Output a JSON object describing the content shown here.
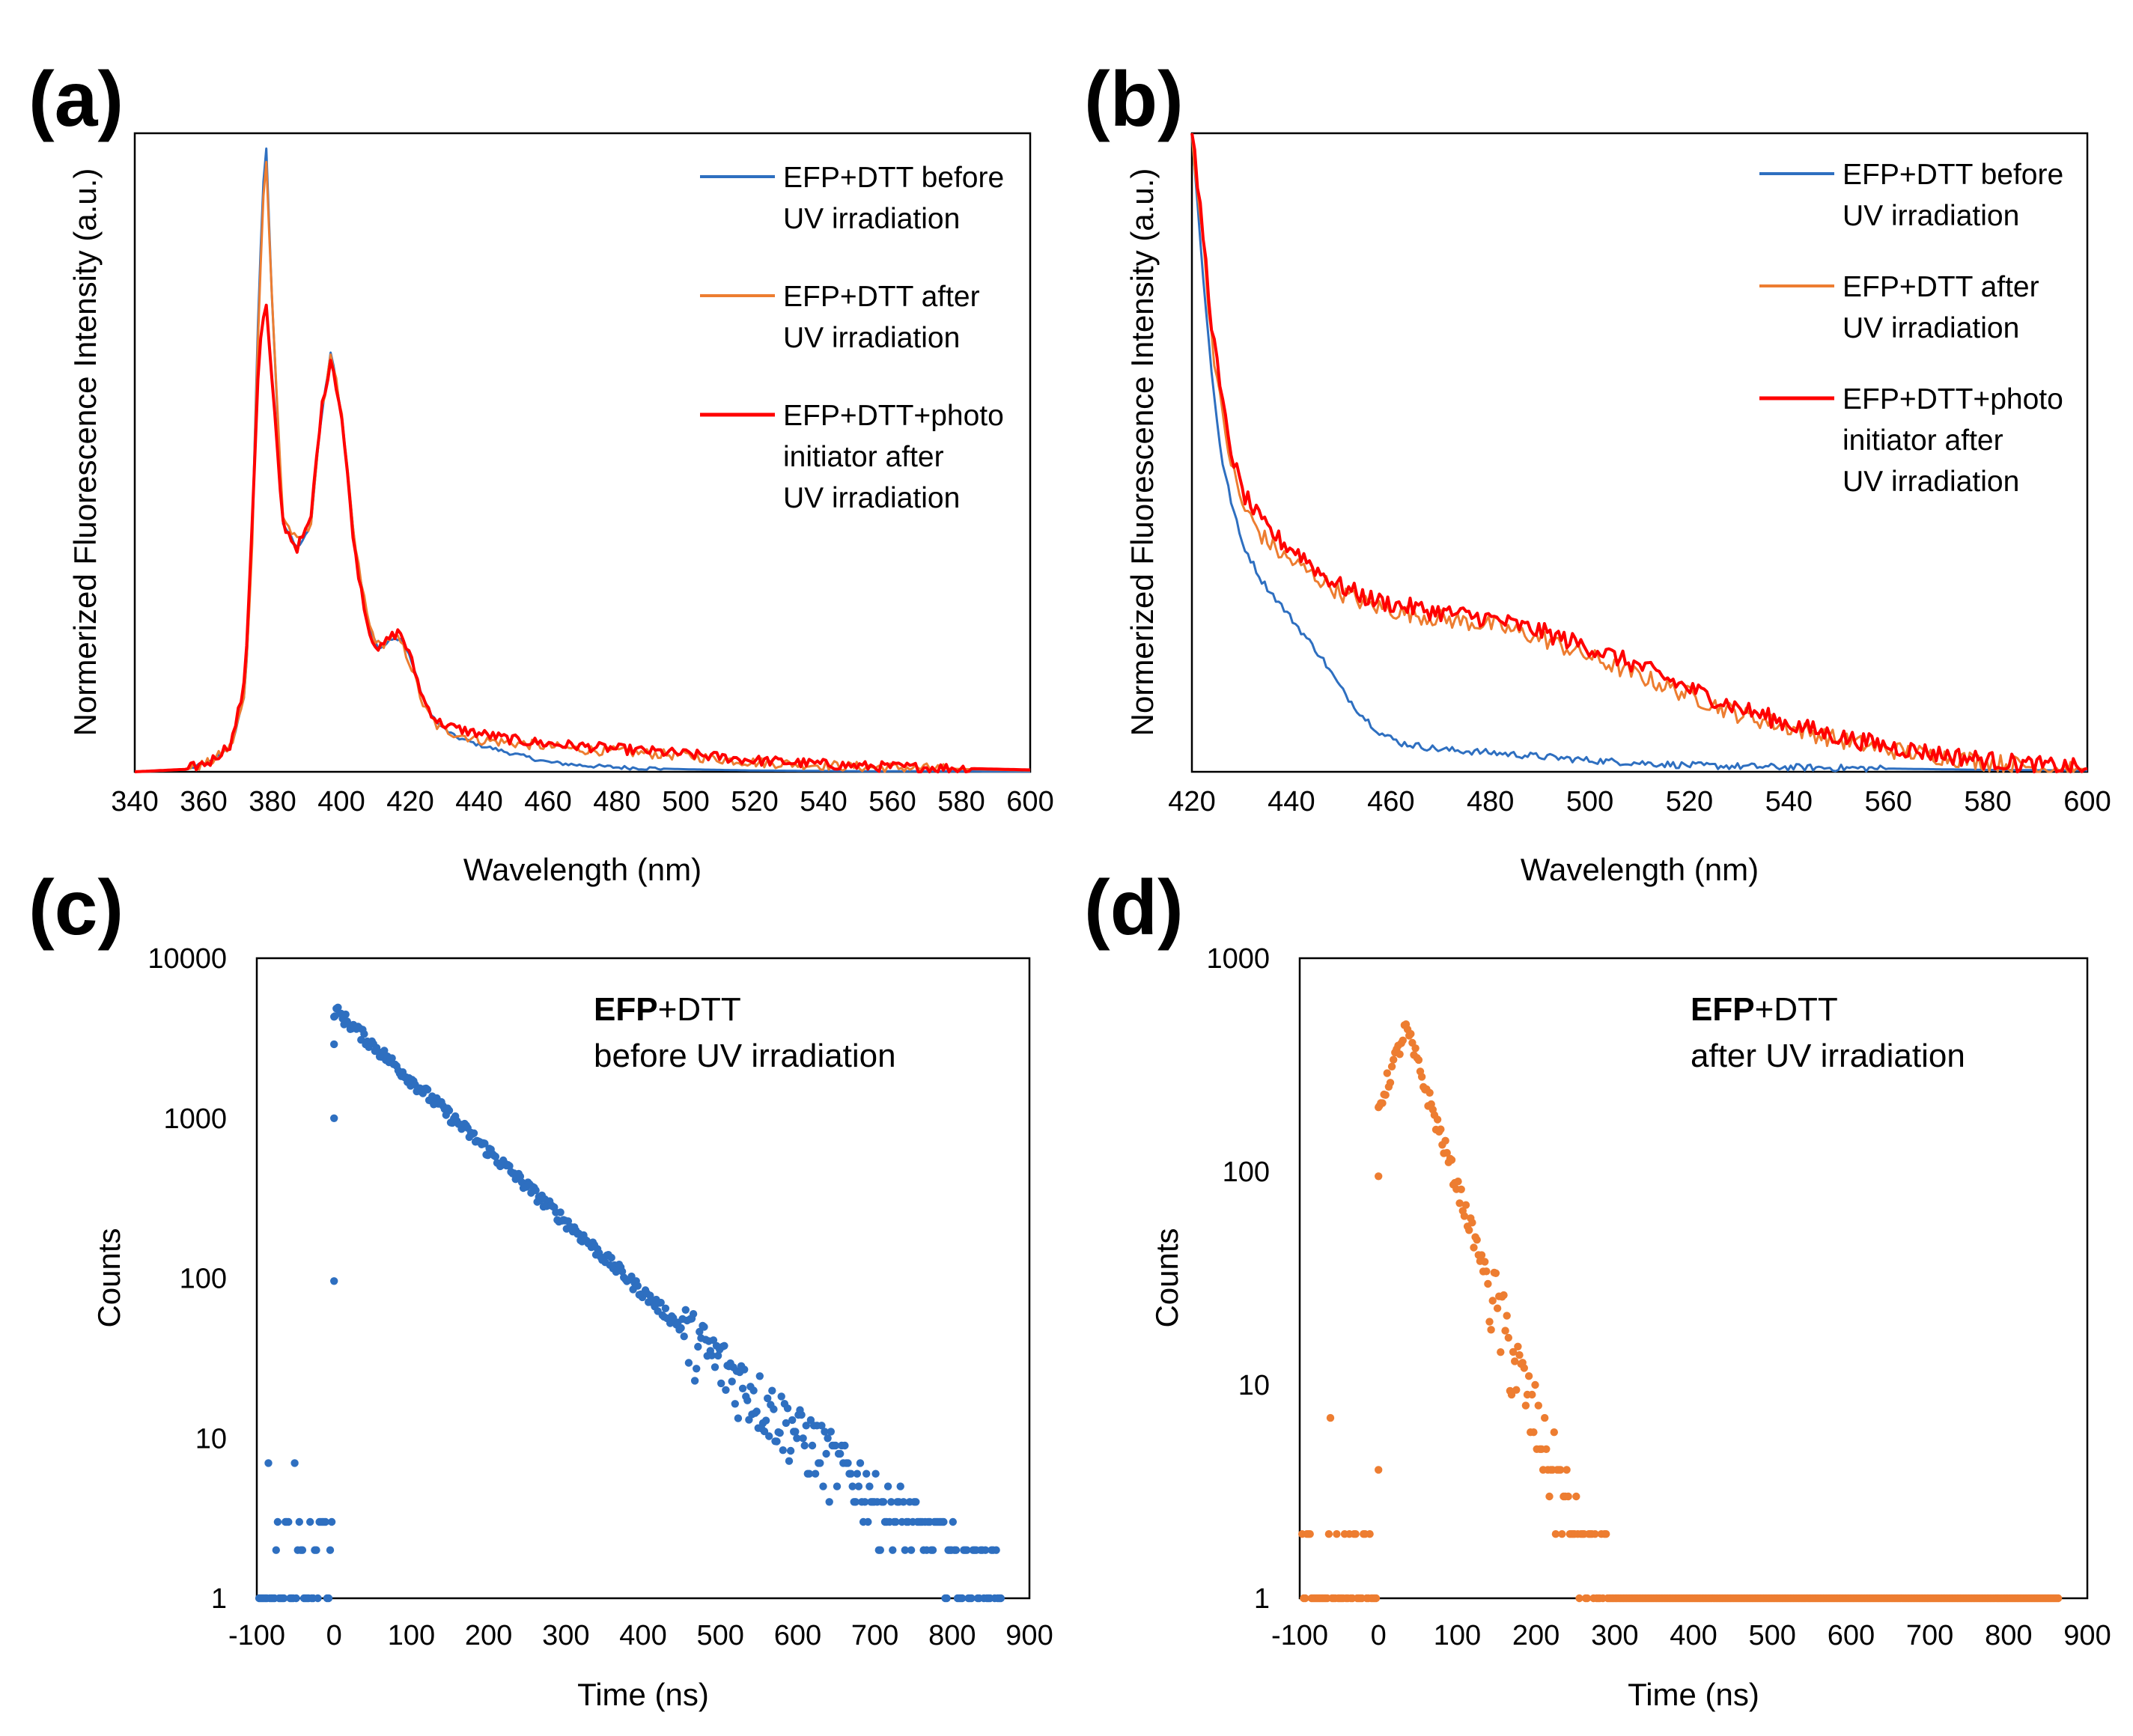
{
  "colors": {
    "blue": "#2E6FC0",
    "orange": "#ED7D31",
    "red": "#FF0000"
  },
  "chart_data": [
    {
      "id": "a",
      "panel_label": "(a)",
      "type": "line",
      "xlabel": "Wavelength (nm)",
      "ylabel": "Normerized Fluorescence Intensity (a.u.)",
      "xlim": [
        340,
        600
      ],
      "ylim": [
        0,
        1.0
      ],
      "xticks": [
        340,
        360,
        380,
        400,
        420,
        440,
        460,
        480,
        500,
        520,
        540,
        560,
        580,
        600
      ],
      "legend_position": "top-right",
      "series": [
        {
          "name": "EFP+DTT before UV irradiation",
          "legend_lines": [
            "EFP+DTT before",
            "UV irradiation"
          ],
          "color": "#2E6FC0",
          "x": [
            340,
            355,
            362,
            368,
            372,
            374,
            376,
            378,
            380,
            383,
            387,
            391,
            394,
            397,
            400,
            404,
            408,
            411,
            414,
            417,
            420,
            424,
            428,
            433,
            440,
            450,
            460,
            470,
            480,
            500,
            520,
            550,
            600
          ],
          "y": [
            0,
            0.004,
            0.015,
            0.04,
            0.12,
            0.35,
            0.75,
            1.0,
            0.72,
            0.39,
            0.35,
            0.38,
            0.55,
            0.66,
            0.56,
            0.35,
            0.23,
            0.19,
            0.205,
            0.21,
            0.18,
            0.11,
            0.075,
            0.055,
            0.042,
            0.028,
            0.015,
            0.01,
            0.007,
            0.004,
            0.002,
            0.001,
            0.0005
          ]
        },
        {
          "name": "EFP+DTT after UV irradiation",
          "legend_lines": [
            "EFP+DTT after",
            "UV irradiation"
          ],
          "color": "#ED7D31",
          "x": [
            340,
            355,
            362,
            368,
            372,
            374,
            376,
            378,
            380,
            383,
            387,
            391,
            394,
            397,
            400,
            404,
            408,
            411,
            414,
            417,
            420,
            424,
            428,
            433,
            440,
            450,
            460,
            470,
            480,
            500,
            520,
            550,
            600
          ],
          "y": [
            0,
            0.004,
            0.015,
            0.04,
            0.12,
            0.34,
            0.73,
            0.98,
            0.72,
            0.4,
            0.36,
            0.385,
            0.55,
            0.66,
            0.56,
            0.35,
            0.23,
            0.195,
            0.21,
            0.205,
            0.17,
            0.1,
            0.07,
            0.06,
            0.05,
            0.045,
            0.04,
            0.035,
            0.032,
            0.025,
            0.015,
            0.008,
            0.002
          ]
        },
        {
          "name": "EFP+DTT+photo initiator after UV irradiation",
          "legend_lines": [
            "EFP+DTT+photo",
            "initiator after",
            "UV irradiation"
          ],
          "color": "#FF0000",
          "x": [
            340,
            355,
            362,
            368,
            372,
            374,
            376,
            378,
            380,
            383,
            387,
            391,
            394,
            397,
            400,
            404,
            408,
            411,
            414,
            417,
            420,
            424,
            428,
            433,
            440,
            450,
            460,
            470,
            480,
            500,
            520,
            550,
            600
          ],
          "y": [
            0,
            0.004,
            0.016,
            0.045,
            0.14,
            0.38,
            0.65,
            0.74,
            0.6,
            0.39,
            0.35,
            0.39,
            0.56,
            0.65,
            0.56,
            0.34,
            0.22,
            0.19,
            0.21,
            0.22,
            0.18,
            0.11,
            0.078,
            0.068,
            0.06,
            0.05,
            0.044,
            0.04,
            0.036,
            0.028,
            0.018,
            0.009,
            0.003
          ]
        }
      ]
    },
    {
      "id": "b",
      "panel_label": "(b)",
      "type": "line",
      "xlabel": "Wavelength (nm)",
      "ylabel": "Normerized Fluorescence Intensity (a.u.)",
      "xlim": [
        420,
        600
      ],
      "ylim": [
        0,
        1.0
      ],
      "xticks": [
        420,
        440,
        460,
        480,
        500,
        520,
        540,
        560,
        580,
        600
      ],
      "legend_position": "top-right",
      "series": [
        {
          "name": "EFP+DTT before UV irradiation",
          "legend_lines": [
            "EFP+DTT before",
            "UV irradiation"
          ],
          "color": "#2E6FC0",
          "x": [
            420,
            422,
            424,
            426,
            428,
            430,
            434,
            438,
            442,
            446,
            450,
            454,
            458,
            462,
            470,
            480,
            490,
            500,
            510,
            520,
            540,
            560,
            580,
            600
          ],
          "y": [
            1.0,
            0.8,
            0.62,
            0.49,
            0.42,
            0.36,
            0.3,
            0.26,
            0.22,
            0.18,
            0.13,
            0.09,
            0.06,
            0.045,
            0.035,
            0.03,
            0.024,
            0.018,
            0.014,
            0.01,
            0.007,
            0.005,
            0.003,
            0.002
          ]
        },
        {
          "name": "EFP+DTT after UV irradiation",
          "legend_lines": [
            "EFP+DTT after",
            "UV irradiation"
          ],
          "color": "#ED7D31",
          "x": [
            420,
            422,
            424,
            426,
            428,
            430,
            434,
            438,
            442,
            446,
            450,
            456,
            462,
            470,
            480,
            490,
            500,
            510,
            520,
            530,
            540,
            550,
            560,
            570,
            580,
            590,
            600
          ],
          "y": [
            1.0,
            0.85,
            0.68,
            0.56,
            0.48,
            0.42,
            0.37,
            0.34,
            0.32,
            0.3,
            0.28,
            0.26,
            0.25,
            0.24,
            0.23,
            0.21,
            0.18,
            0.15,
            0.12,
            0.09,
            0.07,
            0.05,
            0.035,
            0.025,
            0.015,
            0.008,
            0.004
          ]
        },
        {
          "name": "EFP+DTT+photo initiator after UV irradiation",
          "legend_lines": [
            "EFP+DTT+photo",
            "initiator after",
            "UV irradiation"
          ],
          "color": "#FF0000",
          "x": [
            420,
            422,
            424,
            426,
            428,
            430,
            434,
            438,
            442,
            446,
            450,
            456,
            462,
            470,
            480,
            490,
            500,
            510,
            520,
            530,
            540,
            550,
            560,
            570,
            580,
            590,
            600
          ],
          "y": [
            1.0,
            0.86,
            0.7,
            0.58,
            0.5,
            0.44,
            0.39,
            0.36,
            0.34,
            0.31,
            0.29,
            0.27,
            0.26,
            0.25,
            0.24,
            0.22,
            0.195,
            0.165,
            0.13,
            0.1,
            0.075,
            0.055,
            0.04,
            0.028,
            0.018,
            0.01,
            0.005
          ]
        }
      ]
    },
    {
      "id": "c",
      "panel_label": "(c)",
      "type": "scatter",
      "xlabel": "Time (ns)",
      "ylabel": "Counts",
      "yscale": "log",
      "xlim": [
        -100,
        900
      ],
      "ylim": [
        1,
        10000
      ],
      "xticks": [
        -100,
        0,
        100,
        200,
        300,
        400,
        500,
        600,
        700,
        800,
        900
      ],
      "yticks": [
        1,
        10,
        100,
        1000,
        10000
      ],
      "annotation_bold": "EFP",
      "annotation_rest": "+DTT",
      "annotation_line2": "before UV irradiation",
      "color": "#2E6FC0",
      "decay": {
        "peak_time_ns": 0,
        "peak_counts": 4800,
        "lifetime_ns": 98,
        "end_time_ns": 864,
        "background_counts": [
          1,
          2,
          3
        ]
      }
    },
    {
      "id": "d",
      "panel_label": "(d)",
      "type": "scatter",
      "xlabel": "Time (ns)",
      "ylabel": "Counts",
      "yscale": "log",
      "xlim": [
        -100,
        900
      ],
      "ylim": [
        1,
        1000
      ],
      "xticks": [
        -100,
        0,
        100,
        200,
        300,
        400,
        500,
        600,
        700,
        800,
        900
      ],
      "yticks": [
        1,
        10,
        100,
        1000
      ],
      "annotation_bold": "EFP",
      "annotation_rest": "+DTT",
      "annotation_line2": "after UV irradiation",
      "color": "#ED7D31",
      "decay": {
        "peak_time_ns": 35,
        "peak_counts": 470,
        "lifetime_ns": 38,
        "end_time_ns": 864,
        "background_counts": [
          1,
          2
        ]
      }
    }
  ]
}
